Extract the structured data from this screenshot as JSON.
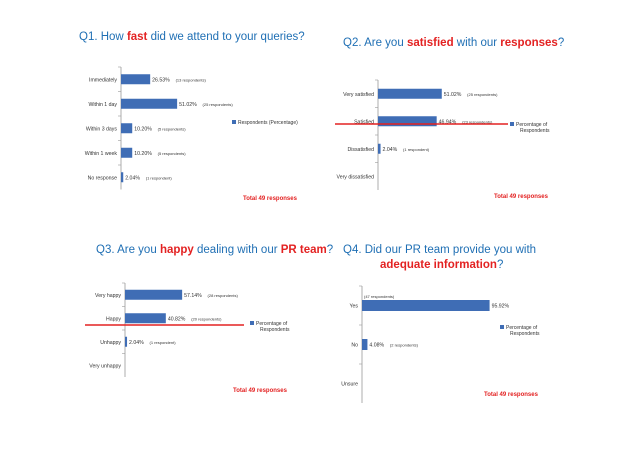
{
  "colors": {
    "bar": "#3f6db5",
    "title": "#1f6fb4",
    "highlight": "#e32222",
    "redline": "#e32222"
  },
  "chart_data": [
    {
      "type": "bar",
      "orientation": "horizontal",
      "title_parts": [
        "Q1. How ",
        "fast",
        " did we attend to your queries?"
      ],
      "categories": [
        "Immediately",
        "Within 1 day",
        "Within 3 days",
        "Within 1 week",
        "No response"
      ],
      "series": [
        {
          "name": "Respondents (Percentage)",
          "values": [
            26.53,
            51.02,
            10.2,
            10.2,
            2.04
          ]
        }
      ],
      "value_labels": [
        "26.53%",
        "51.02%",
        "10.20%",
        "10.20%",
        "2.04%"
      ],
      "respondent_labels": [
        "(13 respondents)",
        "(25 respondents)",
        "(5 respondents)",
        "(5 respondents)",
        "(1 respondent)"
      ],
      "xlim": [
        0,
        100
      ],
      "legend": "right",
      "total": "Total 49 responses"
    },
    {
      "type": "bar",
      "orientation": "horizontal",
      "title_parts": [
        "Q2. Are you ",
        "satisfied",
        " with our ",
        "responses",
        "?"
      ],
      "categories": [
        "Very satisfied",
        "Satisfied",
        "Dissatisfied",
        "Very dissatisfied"
      ],
      "series": [
        {
          "name": "Percentage of Respondents",
          "values": [
            51.02,
            46.94,
            2.04,
            0
          ]
        }
      ],
      "value_labels": [
        "51.02%",
        "46.94%",
        "2.04%",
        ""
      ],
      "respondent_labels": [
        "(25 respondents)",
        "(23 respondents)",
        "(1 respondent)",
        ""
      ],
      "xlim": [
        0,
        100
      ],
      "legend": "right",
      "total": "Total 49 responses"
    },
    {
      "type": "bar",
      "orientation": "horizontal",
      "title_parts": [
        "Q3.  Are you ",
        "happy",
        " dealing with our ",
        "PR team",
        "?"
      ],
      "categories": [
        "Very happy",
        "Happy",
        "Unhappy",
        "Very unhappy"
      ],
      "series": [
        {
          "name": "Percentage of Respondents",
          "values": [
            57.14,
            40.82,
            2.04,
            0
          ]
        }
      ],
      "value_labels": [
        "57.14%",
        "40.82%",
        "2.04%",
        ""
      ],
      "respondent_labels": [
        "(28 respondents)",
        "(20 respondents)",
        "(1 respondent)",
        ""
      ],
      "xlim": [
        0,
        100
      ],
      "legend": "right",
      "total": "Total 49 responses"
    },
    {
      "type": "bar",
      "orientation": "horizontal",
      "title_parts": [
        "Q4.  Did our PR team provide you with",
        "adequate information",
        "?"
      ],
      "categories": [
        "Yes",
        "No",
        "Unsure"
      ],
      "series": [
        {
          "name": "Percentage of Respondents",
          "values": [
            95.92,
            4.08,
            0
          ]
        }
      ],
      "value_labels": [
        "95.92%",
        "4.08%",
        ""
      ],
      "respondent_labels": [
        "(47 respondents)",
        "(2 respondents)",
        ""
      ],
      "xlim": [
        0,
        100
      ],
      "legend": "right",
      "total": "Total 49 responses"
    }
  ]
}
